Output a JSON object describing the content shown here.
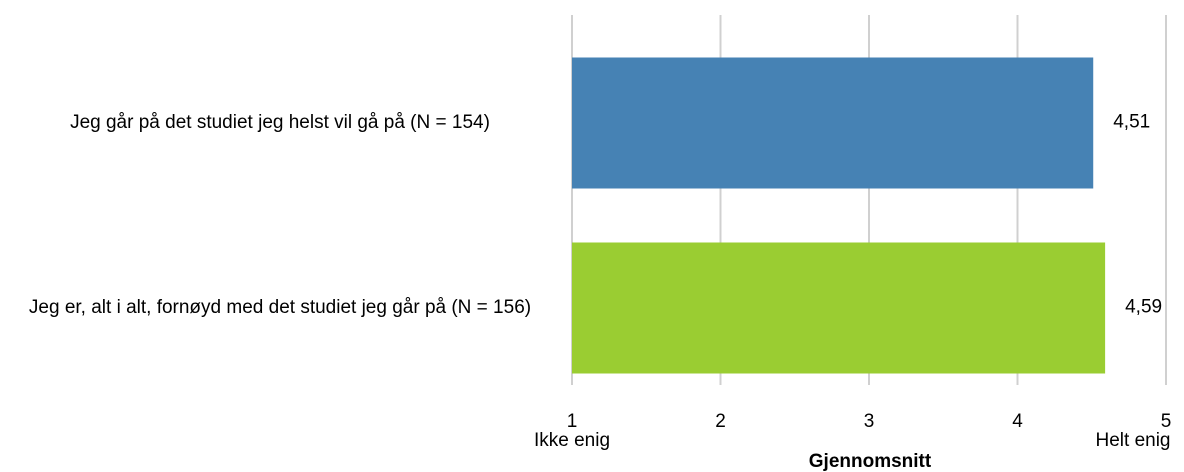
{
  "chart_data": {
    "type": "barh",
    "categories": [
      "Jeg går på det studiet jeg helst vil gå på (N = 154)",
      "Jeg er, alt i alt, fornøyd med det studiet jeg går på (N = 156)"
    ],
    "values": [
      4.51,
      4.59
    ],
    "value_labels": [
      "4,51",
      "4,59"
    ],
    "colors": [
      "#4682b4",
      "#9acd32"
    ],
    "xlim": [
      1,
      5
    ],
    "xticks": [
      1,
      2,
      3,
      4,
      5
    ],
    "grid": true,
    "xlabel": "Gjennomsnitt",
    "annotations": [
      "Ikke enig",
      "Helt enig"
    ]
  }
}
